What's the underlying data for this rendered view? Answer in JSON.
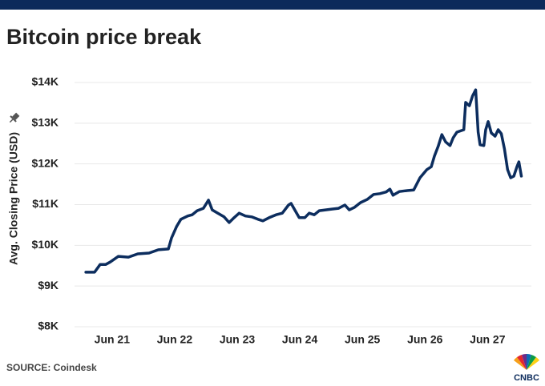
{
  "chart_data": {
    "type": "line",
    "title": "Bitcoin price break",
    "y_label": "Avg. Closing Price (USD)",
    "source": "SOURCE: Coindesk",
    "logo": "CNBC",
    "grid": true,
    "xlim": [
      20.4,
      27.7
    ],
    "xticks": [
      {
        "value": 21,
        "label": "Jun 21"
      },
      {
        "value": 22,
        "label": "Jun 22"
      },
      {
        "value": 23,
        "label": "Jun 23"
      },
      {
        "value": 24,
        "label": "Jun 24"
      },
      {
        "value": 25,
        "label": "Jun 25"
      },
      {
        "value": 26,
        "label": "Jun 26"
      },
      {
        "value": 27,
        "label": "Jun 27"
      }
    ],
    "ylim": [
      8000,
      14000
    ],
    "yticks": [
      {
        "value": 14000,
        "label": "$14K"
      },
      {
        "value": 13000,
        "label": "$13K"
      },
      {
        "value": 12000,
        "label": "$12K"
      },
      {
        "value": 11000,
        "label": "$11K"
      },
      {
        "value": 10000,
        "label": "$10K"
      },
      {
        "value": 9000,
        "label": "$9K"
      },
      {
        "value": 8000,
        "label": "$8K"
      }
    ],
    "x": [
      20.58,
      20.72,
      20.81,
      20.9,
      20.97,
      21.1,
      21.26,
      21.41,
      21.59,
      21.74,
      21.9,
      21.95,
      22.03,
      22.1,
      22.21,
      22.28,
      22.36,
      22.46,
      22.54,
      22.6,
      22.69,
      22.79,
      22.87,
      22.95,
      23.03,
      23.13,
      23.23,
      23.33,
      23.41,
      23.51,
      23.62,
      23.72,
      23.82,
      23.86,
      23.92,
      23.99,
      24.08,
      24.15,
      24.23,
      24.31,
      24.41,
      24.51,
      24.62,
      24.72,
      24.79,
      24.87,
      24.97,
      25.08,
      25.18,
      25.28,
      25.38,
      25.44,
      25.49,
      25.59,
      25.69,
      25.82,
      25.92,
      26.03,
      26.1,
      26.15,
      26.21,
      26.27,
      26.33,
      26.4,
      26.45,
      26.51,
      26.62,
      26.65,
      26.71,
      26.76,
      26.81,
      26.85,
      26.88,
      26.94,
      26.97,
      27.01,
      27.06,
      27.12,
      27.17,
      27.22,
      27.27,
      27.32,
      27.37,
      27.42,
      27.47,
      27.5,
      27.54
    ],
    "series": [
      {
        "name": "Avg. Closing Price",
        "color": "#0c2d5e",
        "values": [
          9340,
          9340,
          9530,
          9530,
          9590,
          9730,
          9710,
          9790,
          9810,
          9890,
          9910,
          10180,
          10460,
          10640,
          10720,
          10750,
          10850,
          10910,
          11110,
          10870,
          10790,
          10700,
          10560,
          10680,
          10790,
          10720,
          10700,
          10640,
          10600,
          10680,
          10750,
          10790,
          10990,
          11030,
          10870,
          10680,
          10680,
          10790,
          10750,
          10850,
          10870,
          10890,
          10910,
          10990,
          10870,
          10930,
          11050,
          11130,
          11250,
          11270,
          11310,
          11380,
          11230,
          11320,
          11340,
          11360,
          11660,
          11860,
          11930,
          12190,
          12430,
          12720,
          12540,
          12450,
          12640,
          12780,
          12840,
          13510,
          13430,
          13670,
          13820,
          12780,
          12470,
          12450,
          12840,
          13040,
          12760,
          12680,
          12840,
          12740,
          12370,
          11860,
          11660,
          11700,
          11930,
          12050,
          11700
        ]
      }
    ]
  }
}
